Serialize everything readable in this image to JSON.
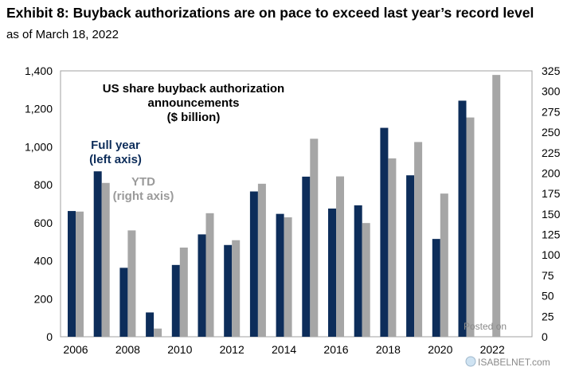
{
  "header": {
    "title": "Exhibit 8: Buyback authorizations are on pace to exceed last year’s record level",
    "subtitle": "as of March 18, 2022"
  },
  "chart_data": {
    "type": "bar",
    "title": [
      "US share buyback authorization",
      "announcements",
      "($ billion)"
    ],
    "categories": [
      "2006",
      "2007",
      "2008",
      "2009",
      "2010",
      "2011",
      "2012",
      "2013",
      "2014",
      "2015",
      "2016",
      "2017",
      "2018",
      "2019",
      "2020",
      "2021",
      "2022"
    ],
    "x_tick_labels": [
      "2006",
      "2008",
      "2010",
      "2012",
      "2014",
      "2016",
      "2018",
      "2020",
      "2022"
    ],
    "series": [
      {
        "name": "Full year (left axis)",
        "label_lines": [
          "Full year",
          "(left axis)"
        ],
        "axis": "left",
        "color": "#0d2d5a",
        "values": [
          662,
          871,
          363,
          128,
          378,
          539,
          483,
          765,
          647,
          843,
          675,
          692,
          1100,
          850,
          515,
          1243,
          null
        ]
      },
      {
        "name": "YTD (right axis)",
        "label_lines": [
          "YTD",
          "(right axis)"
        ],
        "axis": "right",
        "color": "#a6a6a6",
        "values": [
          153,
          188,
          130,
          10,
          109,
          151,
          118,
          187,
          146,
          242,
          196,
          139,
          218,
          238,
          175,
          268,
          320
        ]
      }
    ],
    "left_axis": {
      "ylim": [
        0,
        1400
      ],
      "ticks": [
        "0",
        "200",
        "400",
        "600",
        "800",
        "1,000",
        "1,200",
        "1,400"
      ]
    },
    "right_axis": {
      "ylim": [
        0,
        325
      ],
      "ticks": [
        "0",
        "25",
        "50",
        "75",
        "100",
        "125",
        "150",
        "175",
        "200",
        "225",
        "250",
        "275",
        "300",
        "325"
      ]
    },
    "grid": false,
    "legend": "inline annotations top-left"
  },
  "watermark": {
    "line1": "Posted on",
    "line2": "ISABELNET.com"
  }
}
